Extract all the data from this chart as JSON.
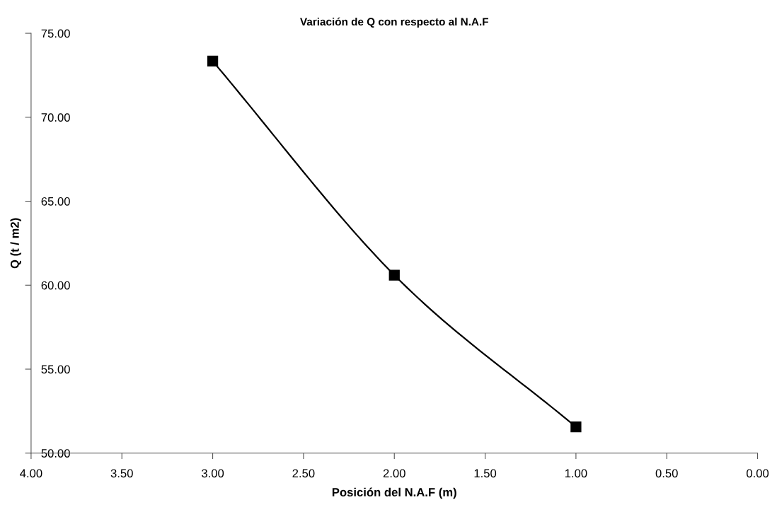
{
  "chart_data": {
    "type": "line",
    "title": "Variación de Q con respecto al N.A.F",
    "xlabel": "Posición del N.A.F (m)",
    "ylabel": "Q (t / m2)",
    "x": [
      3,
      2,
      1
    ],
    "series": [
      {
        "color": "#000000",
        "values": [
          73.34,
          60.6,
          51.56
        ]
      }
    ],
    "xlim": [
      4,
      0
    ],
    "xticks": [
      {
        "value": 4,
        "label": "4.00"
      },
      {
        "value": 3.5,
        "label": "3.50"
      },
      {
        "value": 3,
        "label": "3.00"
      },
      {
        "value": 2.5,
        "label": "2.50"
      },
      {
        "value": 2,
        "label": "2.00"
      },
      {
        "value": 1.5,
        "label": "1.50"
      },
      {
        "value": 1,
        "label": "1.00"
      },
      {
        "value": 0.5,
        "label": "0.50"
      },
      {
        "value": 0,
        "label": "0.00"
      }
    ],
    "ylim": [
      50,
      75
    ],
    "yticks": [
      {
        "value": 50,
        "label": "50.00"
      },
      {
        "value": 55,
        "label": "55.00"
      },
      {
        "value": 60,
        "label": "60.00"
      },
      {
        "value": 65,
        "label": "65.00"
      },
      {
        "value": 70,
        "label": "70.00"
      },
      {
        "value": 75,
        "label": "75.00"
      }
    ],
    "marker": "square",
    "line_style": "solid",
    "grid": false,
    "legend": false
  }
}
